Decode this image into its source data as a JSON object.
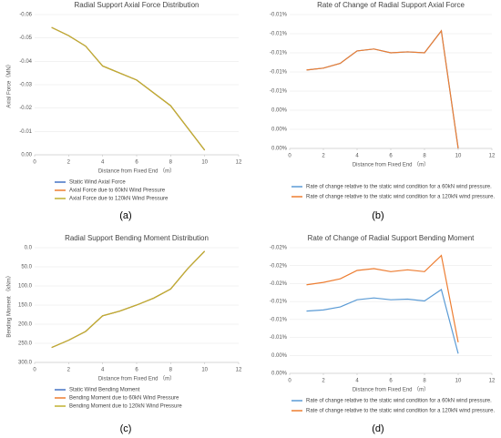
{
  "chart_data": [
    {
      "type": "line",
      "caption": "(a)",
      "title": "Radial Support Axial Force Distribution",
      "xlabel": "Distance from Fixed End （m）",
      "ylabel": "Axial Force（MN）",
      "x": [
        1,
        2,
        3,
        4,
        5,
        6,
        7,
        8,
        9,
        10
      ],
      "series": [
        {
          "name": "Static Wind Axial Force",
          "color": "#4472c4",
          "values": [
            -0.0545,
            -0.051,
            -0.0465,
            -0.038,
            -0.035,
            -0.032,
            -0.0265,
            -0.021,
            -0.0115,
            -0.002
          ]
        },
        {
          "name": "Axial Force due to 60kN Wind Pressure",
          "color": "#ed7d31",
          "values": [
            -0.0545,
            -0.051,
            -0.0465,
            -0.038,
            -0.035,
            -0.032,
            -0.0265,
            -0.021,
            -0.0115,
            -0.002
          ]
        },
        {
          "name": "Axial Force due to 120kN Wind Pressure",
          "color": "#c0b030",
          "values": [
            -0.0545,
            -0.051,
            -0.0465,
            -0.038,
            -0.035,
            -0.032,
            -0.0265,
            -0.021,
            -0.0115,
            -0.002
          ]
        }
      ],
      "xlim": [
        0,
        12
      ],
      "xticks": [
        0,
        2,
        4,
        6,
        8,
        10,
        12
      ],
      "ylim": [
        0,
        -0.06
      ],
      "yticks": [
        {
          "value": 0,
          "label": "0.00"
        },
        -0.01,
        -0.02,
        -0.03,
        -0.04,
        -0.05,
        -0.06
      ],
      "legend": "bottom"
    },
    {
      "type": "line",
      "caption": "(b)",
      "title": "Rate of Change of Radial Support Axial Force",
      "xlabel": "Distance from Fixed End （m）",
      "x": [
        1,
        2,
        3,
        4,
        5,
        6,
        7,
        8,
        9,
        10
      ],
      "series": [
        {
          "name": "Rate of change relative to the static wind condition for a 60kN wind pressure.",
          "color": "#5b9bd5",
          "values": [
            -0.0082,
            -0.0084,
            -0.0089,
            -0.0102,
            -0.0104,
            -0.01,
            -0.0101,
            -0.01,
            -0.0123,
            0
          ]
        },
        {
          "name": "Rate of change relative to the static wind condition for a 120kN wind pressure.",
          "color": "#ed7d31",
          "values": [
            -0.0082,
            -0.0084,
            -0.0089,
            -0.0102,
            -0.0104,
            -0.01,
            -0.0101,
            -0.01,
            -0.0123,
            0
          ]
        }
      ],
      "xlim": [
        0,
        12
      ],
      "xticks": [
        0,
        2,
        4,
        6,
        8,
        10,
        12
      ],
      "ylim": [
        0,
        -0.014
      ],
      "yticks": [
        {
          "value": 0,
          "label": "0.00%"
        },
        {
          "value": -0.002,
          "label": "0.00%"
        },
        {
          "value": -0.004,
          "label": "0.00%"
        },
        {
          "value": -0.006,
          "label": "-0.01%"
        },
        {
          "value": -0.008,
          "label": "-0.01%"
        },
        {
          "value": -0.01,
          "label": "-0.01%"
        },
        {
          "value": -0.012,
          "label": "-0.01%"
        },
        {
          "value": -0.014,
          "label": "-0.01%"
        }
      ],
      "legend": "bottom"
    },
    {
      "type": "line",
      "caption": "(c)",
      "title": "Radial Support Bending Moment Distribution",
      "xlabel": "Distance from Fixed End （m）",
      "ylabel": "Bending Moment （kNm）",
      "x": [
        1,
        2,
        3,
        4,
        5,
        6,
        7,
        8,
        9,
        10
      ],
      "series": [
        {
          "name": "Static Wind Bending Moment",
          "color": "#4472c4",
          "values": [
            261,
            242,
            219,
            178,
            166,
            150,
            132,
            108,
            55,
            9
          ]
        },
        {
          "name": "Bending Moment due to 60kN Wind Pressure",
          "color": "#ed7d31",
          "values": [
            261,
            242,
            219,
            178,
            166,
            150,
            132,
            108,
            55,
            9
          ]
        },
        {
          "name": "Bending Moment due to 120kN Wind Pressure",
          "color": "#c0b030",
          "values": [
            261,
            242,
            219,
            178,
            166,
            150,
            132,
            108,
            55,
            9
          ]
        }
      ],
      "xlim": [
        0,
        12
      ],
      "xticks": [
        0,
        2,
        4,
        6,
        8,
        10,
        12
      ],
      "ylim": [
        300,
        0
      ],
      "yticks": [
        {
          "value": 0,
          "label": "0.0"
        },
        {
          "value": 50,
          "label": "50.0"
        },
        {
          "value": 100,
          "label": "100.0"
        },
        {
          "value": 150,
          "label": "150.0"
        },
        {
          "value": 200,
          "label": "200.0"
        },
        {
          "value": 250,
          "label": "250.0"
        },
        {
          "value": 300,
          "label": "300.0"
        }
      ],
      "legend": "bottom"
    },
    {
      "type": "line",
      "caption": "(d)",
      "title": "Rate of Change of Radial Support Bending Moment",
      "xlabel": "Distance from Fixed End （m）",
      "x": [
        1,
        2,
        3,
        4,
        5,
        6,
        7,
        8,
        9,
        10
      ],
      "series": [
        {
          "name": "Rate of change relative to the static wind condition for a 60kN wind pressure.",
          "color": "#5b9bd5",
          "values": [
            -0.0104,
            -0.0106,
            -0.0111,
            -0.0123,
            -0.0126,
            -0.0123,
            -0.0124,
            -0.0121,
            -0.014,
            -0.0033
          ]
        },
        {
          "name": "Rate of change relative to the static wind condition for a 120kN wind pressure.",
          "color": "#ed7d31",
          "values": [
            -0.0148,
            -0.0152,
            -0.0158,
            -0.0172,
            -0.0175,
            -0.017,
            -0.0173,
            -0.017,
            -0.0197,
            -0.0052
          ]
        }
      ],
      "xlim": [
        0,
        12
      ],
      "xticks": [
        0,
        2,
        4,
        6,
        8,
        10,
        12
      ],
      "ylim": [
        0,
        -0.021
      ],
      "yticks": [
        {
          "value": 0,
          "label": "0.00%"
        },
        {
          "value": -0.003,
          "label": "0.00%"
        },
        {
          "value": -0.006,
          "label": "-0.01%"
        },
        {
          "value": -0.009,
          "label": "-0.01%"
        },
        {
          "value": -0.012,
          "label": "-0.01%"
        },
        {
          "value": -0.015,
          "label": "-0.02%"
        },
        {
          "value": -0.018,
          "label": "-0.02%"
        },
        {
          "value": -0.021,
          "label": "-0.02%"
        }
      ],
      "legend": "bottom"
    }
  ]
}
